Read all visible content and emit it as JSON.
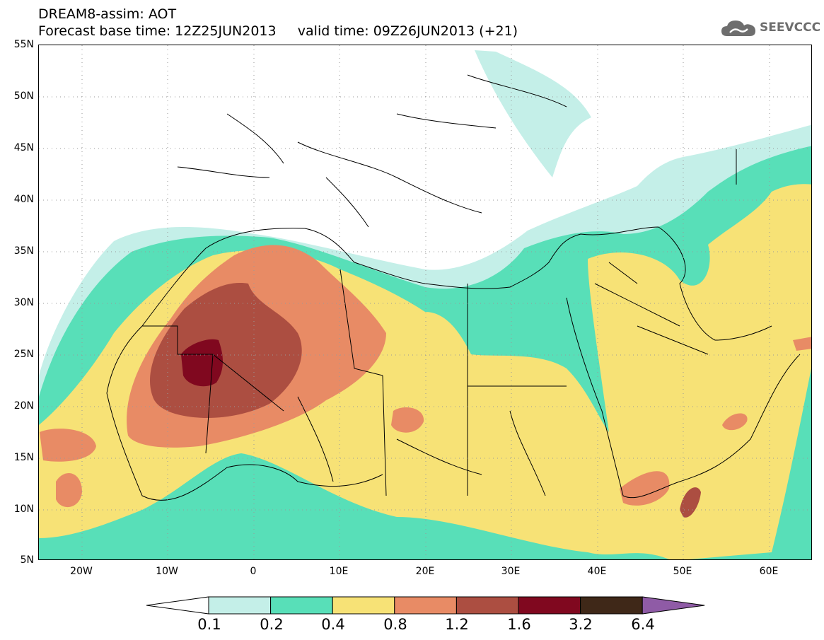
{
  "header": {
    "title_line1": "DREAM8-assim: AOT",
    "title_line2": "Forecast base time: 12Z25JUN2013     valid time: 09Z26JUN2013 (+21)",
    "logo_text": "SEEVCCC",
    "logo_icon": "cloud-icon"
  },
  "map": {
    "variable": "AOT",
    "projection": "lat-lon",
    "lon_range": [
      -25,
      65
    ],
    "lat_range": [
      5,
      55
    ],
    "lat_ticks": [
      "55N",
      "50N",
      "45N",
      "40N",
      "35N",
      "30N",
      "25N",
      "20N",
      "15N",
      "10N",
      "5N"
    ],
    "lon_ticks": [
      "20W",
      "10W",
      "0",
      "10E",
      "20E",
      "30E",
      "40E",
      "50E",
      "60E"
    ],
    "grid": "dotted"
  },
  "legend": {
    "levels": [
      "0.1",
      "0.2",
      "0.4",
      "0.8",
      "1.2",
      "1.6",
      "3.2",
      "6.4"
    ],
    "colors": [
      "#ffffff",
      "#c4efe8",
      "#58dfb8",
      "#f7e276",
      "#e88b65",
      "#ac4e41",
      "#80081f",
      "#3f2818",
      "#8f5ba6"
    ],
    "extends": "both"
  }
}
